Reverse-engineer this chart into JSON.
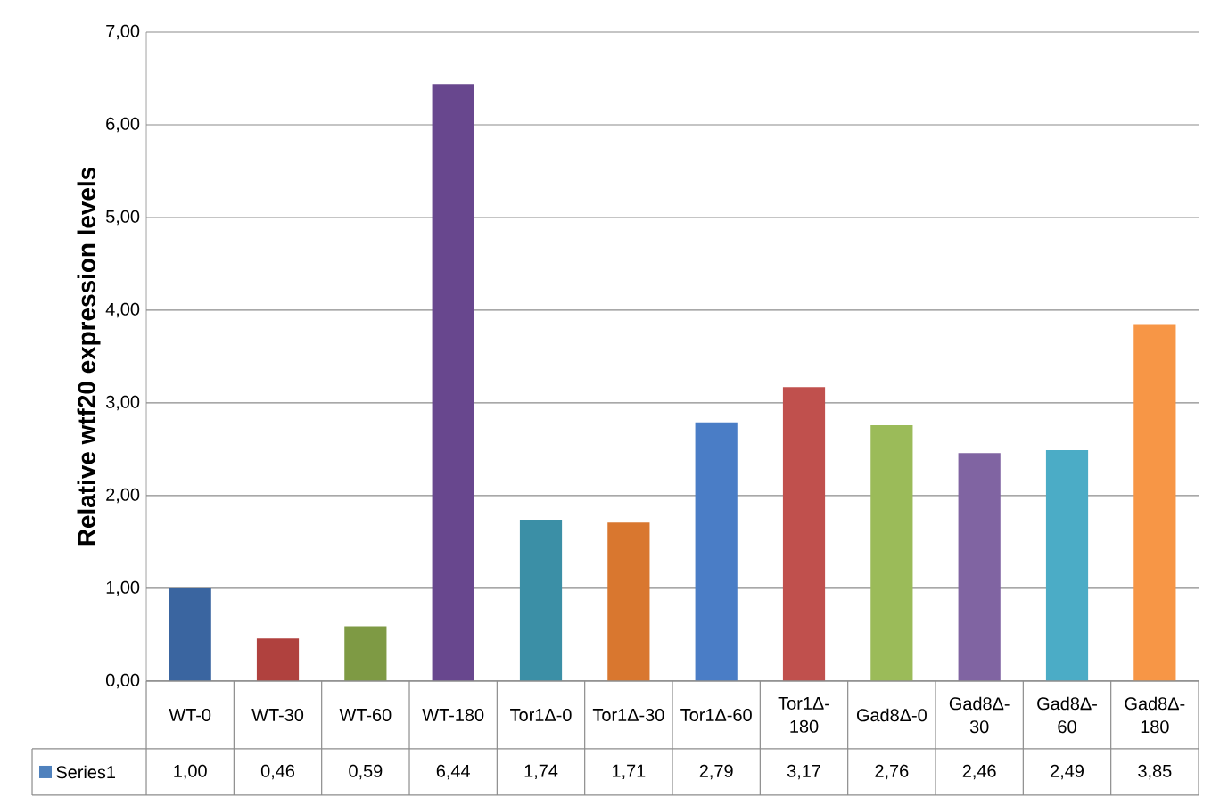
{
  "chart_data": {
    "type": "bar",
    "ylabel": "Relative wtf20 expression levels",
    "categories": [
      "WT-0",
      "WT-30",
      "WT-60",
      "WT-180",
      "Tor1Δ-0",
      "Tor1Δ-30",
      "Tor1Δ-60",
      "Tor1Δ-180",
      "Gad8Δ-0",
      "Gad8Δ-30",
      "Gad8Δ-60",
      "Gad8Δ-180"
    ],
    "series": [
      {
        "name": "Series1",
        "color": "#4f81bd",
        "colors": [
          "#3a65a0",
          "#b0413e",
          "#7e9a44",
          "#68478e",
          "#3b8fa6",
          "#d9772f",
          "#4a7dc6",
          "#c0504d",
          "#9bbb59",
          "#8064a2",
          "#4bacc6",
          "#f79646"
        ],
        "values": [
          1.0,
          0.46,
          0.59,
          6.44,
          1.74,
          1.71,
          2.79,
          3.17,
          2.76,
          2.46,
          2.49,
          3.85
        ],
        "value_labels": [
          "1,00",
          "0,46",
          "0,59",
          "6,44",
          "1,74",
          "1,71",
          "2,79",
          "3,17",
          "2,76",
          "2,46",
          "2,49",
          "3,85"
        ]
      }
    ],
    "ylim": [
      0,
      7
    ],
    "yticks": [
      {
        "value": 0,
        "label": "0,00"
      },
      {
        "value": 1,
        "label": "1,00"
      },
      {
        "value": 2,
        "label": "2,00"
      },
      {
        "value": 3,
        "label": "3,00"
      },
      {
        "value": 4,
        "label": "4,00"
      },
      {
        "value": 5,
        "label": "5,00"
      },
      {
        "value": 6,
        "label": "6,00"
      },
      {
        "value": 7,
        "label": "7,00"
      }
    ],
    "grid": "y",
    "legend": "bottom"
  }
}
